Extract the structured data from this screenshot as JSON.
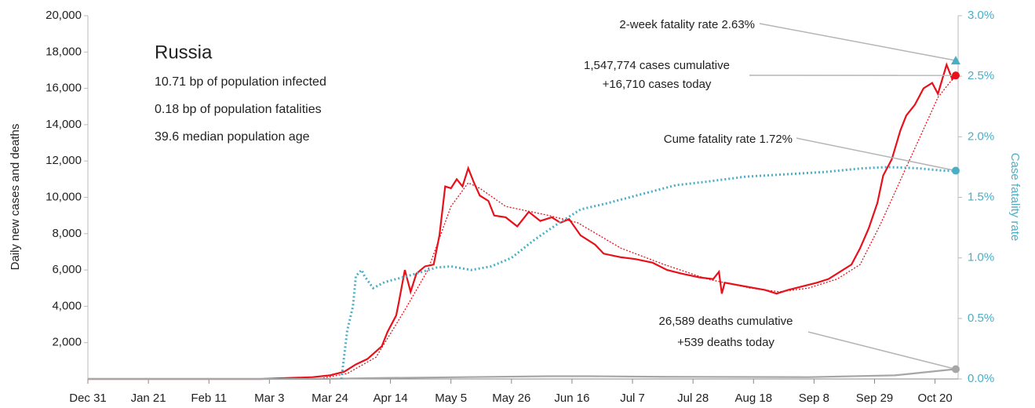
{
  "chart_data": {
    "type": "line",
    "ylabel": "Daily new cases and deaths",
    "y2label": "Case fatality rate",
    "xlim": [
      0,
      302
    ],
    "xticks": [
      {
        "value": 0,
        "label": "Dec 31"
      },
      {
        "value": 21,
        "label": "Jan 21"
      },
      {
        "value": 42,
        "label": "Feb 11"
      },
      {
        "value": 63,
        "label": "Mar 3"
      },
      {
        "value": 84,
        "label": "Mar 24"
      },
      {
        "value": 105,
        "label": "Apr 14"
      },
      {
        "value": 126,
        "label": "May 5"
      },
      {
        "value": 147,
        "label": "May 26"
      },
      {
        "value": 168,
        "label": "Jun 16"
      },
      {
        "value": 189,
        "label": "Jul 7"
      },
      {
        "value": 210,
        "label": "Jul 28"
      },
      {
        "value": 231,
        "label": "Aug 18"
      },
      {
        "value": 252,
        "label": "Sep 8"
      },
      {
        "value": 273,
        "label": "Sep 29"
      },
      {
        "value": 294,
        "label": "Oct 20"
      }
    ],
    "ylim": [
      0,
      20000
    ],
    "yticks": [
      {
        "value": 2000,
        "label": "2,000"
      },
      {
        "value": 4000,
        "label": "4,000"
      },
      {
        "value": 6000,
        "label": "6,000"
      },
      {
        "value": 8000,
        "label": "8,000"
      },
      {
        "value": 10000,
        "label": "10,000"
      },
      {
        "value": 12000,
        "label": "12,000"
      },
      {
        "value": 14000,
        "label": "14,000"
      },
      {
        "value": 16000,
        "label": "16,000"
      },
      {
        "value": 18000,
        "label": "18,000"
      },
      {
        "value": 20000,
        "label": "20,000"
      }
    ],
    "y2lim": [
      0,
      3
    ],
    "y2ticks": [
      {
        "value": 0,
        "label": "0.0%"
      },
      {
        "value": 0.5,
        "label": "0.5%"
      },
      {
        "value": 1,
        "label": "1.0%"
      },
      {
        "value": 1.5,
        "label": "1.5%"
      },
      {
        "value": 2,
        "label": "2.0%"
      },
      {
        "value": 2.5,
        "label": "2.5%"
      },
      {
        "value": 3,
        "label": "3.0%"
      }
    ],
    "info": {
      "title": "Russia",
      "lines": [
        "10.71 bp of population infected",
        "0.18 bp of population fatalities",
        "39.6 median population age"
      ]
    },
    "series": [
      {
        "style": "solid",
        "color": "#e8101a",
        "x": [
          0,
          60,
          78,
          84,
          89,
          93,
          97,
          102,
          104,
          107,
          108,
          110,
          112,
          114,
          117,
          120,
          122,
          124,
          126,
          128,
          130,
          132,
          134,
          136,
          139,
          141,
          145,
          149,
          153,
          157,
          161,
          164,
          167,
          171,
          176,
          179,
          185,
          190,
          196,
          201,
          206,
          212,
          217,
          219,
          220,
          221,
          228,
          235,
          239,
          243,
          248,
          253,
          257,
          261,
          265,
          268,
          271,
          274,
          276,
          279,
          282,
          284,
          287,
          290,
          293,
          295,
          298,
          300,
          301
        ],
        "values": [
          0,
          0,
          100,
          200,
          400,
          800,
          1100,
          1800,
          2600,
          3500,
          4300,
          6000,
          4800,
          5800,
          6200,
          6300,
          7900,
          10600,
          10500,
          11000,
          10600,
          11600,
          10800,
          10100,
          9800,
          9000,
          8900,
          8400,
          9200,
          8700,
          8900,
          8600,
          8800,
          7900,
          7400,
          6900,
          6700,
          6600,
          6400,
          6000,
          5800,
          5600,
          5500,
          5900,
          4700,
          5300,
          5100,
          4900,
          4700,
          4900,
          5100,
          5300,
          5500,
          5900,
          6300,
          7200,
          8300,
          9700,
          11200,
          12100,
          13700,
          14500,
          15100,
          16000,
          16300,
          15700,
          17300,
          16500,
          16710
        ]
      },
      {
        "style": "dotted",
        "color": "#e8101a",
        "x": [
          0,
          80,
          90,
          100,
          110,
          118,
          126,
          132,
          136,
          145,
          160,
          170,
          185,
          200,
          215,
          230,
          240,
          250,
          260,
          268,
          275,
          285,
          295,
          301
        ],
        "values": [
          0,
          0,
          300,
          1200,
          3800,
          6000,
          9500,
          10800,
          10500,
          9500,
          9000,
          8600,
          7200,
          6300,
          5500,
          5000,
          4800,
          5000,
          5500,
          6300,
          8500,
          12000,
          15500,
          16700
        ]
      },
      {
        "style": "solid",
        "color": "#a6a6a6",
        "x": [
          0,
          80,
          100,
          130,
          160,
          175,
          200,
          250,
          280,
          301
        ],
        "values": [
          0,
          0,
          50,
          100,
          150,
          150,
          120,
          100,
          200,
          539
        ]
      },
      {
        "style": "dotted",
        "color": "#4aaec6",
        "axis": "y2",
        "x": [
          88,
          90,
          92,
          93,
          95,
          96,
          99,
          103,
          111,
          121,
          126,
          133,
          140,
          147,
          155,
          163,
          171,
          180,
          188,
          196,
          204,
          215,
          228,
          242,
          256,
          269,
          278,
          288,
          297,
          301
        ],
        "values": [
          0,
          0.4,
          0.6,
          0.85,
          0.9,
          0.85,
          0.75,
          0.8,
          0.85,
          0.92,
          0.93,
          0.9,
          0.93,
          1.0,
          1.15,
          1.28,
          1.4,
          1.45,
          1.5,
          1.55,
          1.6,
          1.63,
          1.67,
          1.69,
          1.71,
          1.74,
          1.75,
          1.74,
          1.72,
          1.72
        ]
      }
    ],
    "annotations": [
      {
        "text": [
          "2-week fatality rate 2.63%"
        ],
        "value": 2.63,
        "axis": "y2",
        "color": "#4aaec6",
        "marker": "triangle"
      },
      {
        "text": [
          "1,547,774 cases cumulative",
          "+16,710 cases today"
        ],
        "value": 16710,
        "color": "#e8101a",
        "marker": "circle"
      },
      {
        "text": [
          "Cume fatality rate 1.72%"
        ],
        "value": 1.72,
        "axis": "y2",
        "color": "#4aaec6",
        "marker": "circle"
      },
      {
        "text": [
          "26,589 deaths cumulative",
          "+539 deaths today"
        ],
        "value": 539,
        "color": "#a6a6a6",
        "marker": "circle"
      }
    ]
  }
}
